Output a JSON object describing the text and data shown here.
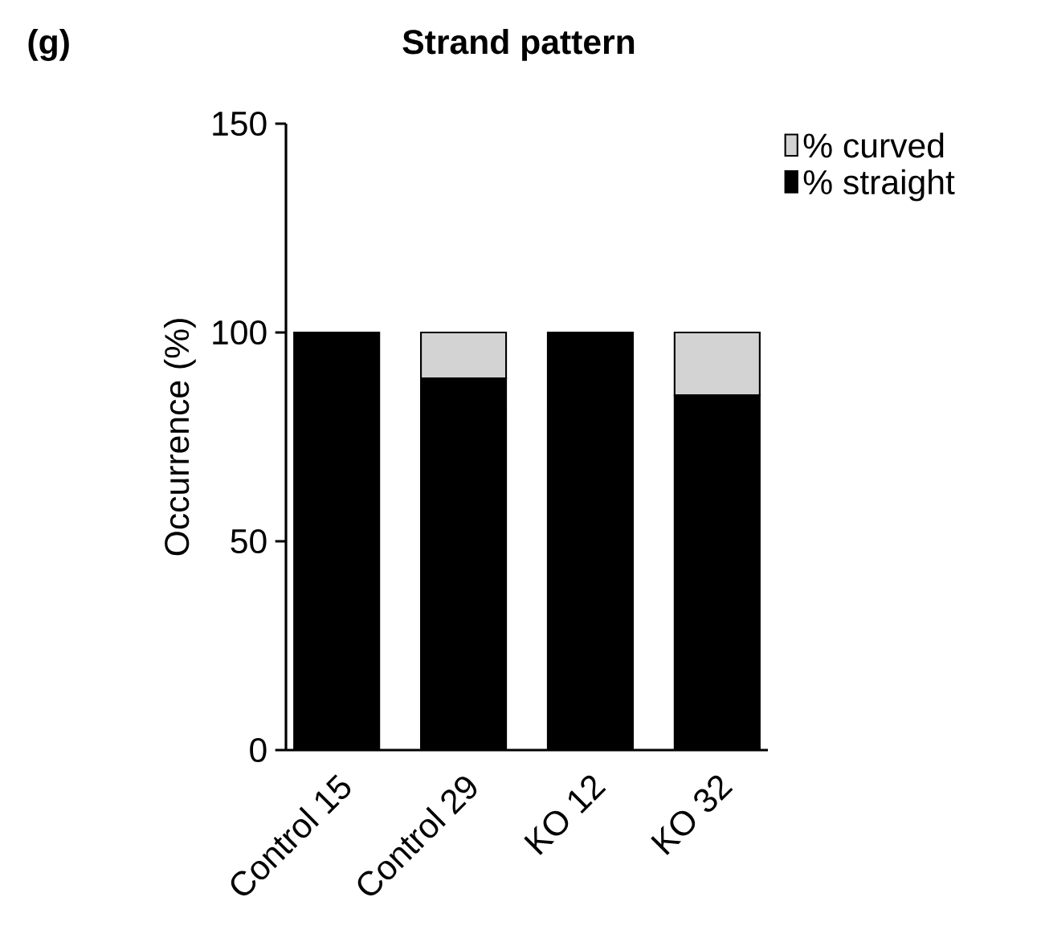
{
  "chart_data": {
    "type": "bar",
    "title": "Strand pattern",
    "ylabel": "Occurrence (%)",
    "annotations": [
      "(g)"
    ],
    "categories": [
      "Control 15",
      "Control 29",
      "KO 12",
      "KO 32"
    ],
    "stacked": true,
    "series": [
      {
        "name": "% straight",
        "color": "#000000",
        "values": [
          100,
          89,
          100,
          85
        ]
      },
      {
        "name": "% curved",
        "color": "#d3d3d3",
        "values": [
          0,
          11,
          0,
          15
        ]
      }
    ],
    "ylim": [
      0,
      150
    ],
    "yticks": [
      0,
      50,
      100,
      150
    ],
    "grid": false,
    "legend": "top right"
  }
}
